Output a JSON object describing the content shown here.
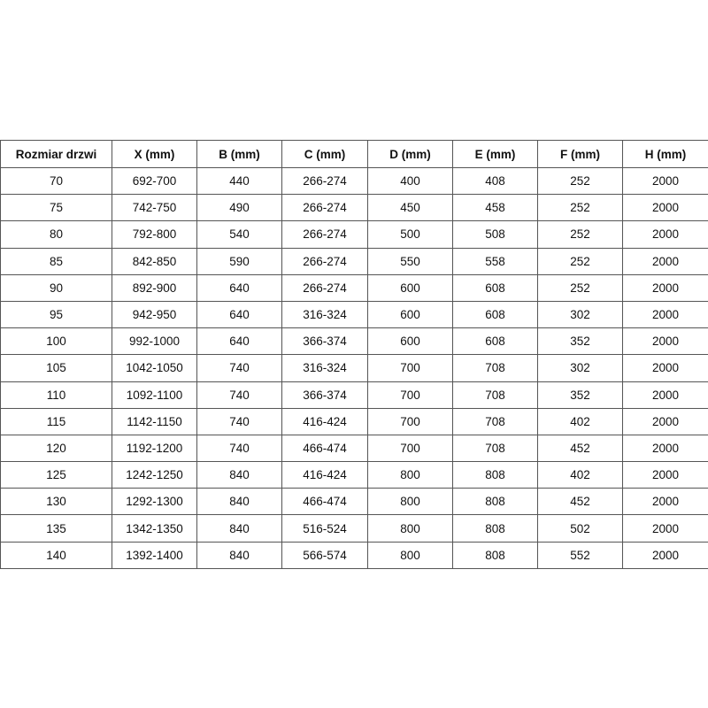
{
  "table": {
    "headers": [
      "Rozmiar drzwi",
      "X (mm)",
      "B (mm)",
      "C (mm)",
      "D (mm)",
      "E (mm)",
      "F (mm)",
      "H (mm)"
    ],
    "rows": [
      [
        "70",
        "692-700",
        "440",
        "266-274",
        "400",
        "408",
        "252",
        "2000"
      ],
      [
        "75",
        "742-750",
        "490",
        "266-274",
        "450",
        "458",
        "252",
        "2000"
      ],
      [
        "80",
        "792-800",
        "540",
        "266-274",
        "500",
        "508",
        "252",
        "2000"
      ],
      [
        "85",
        "842-850",
        "590",
        "266-274",
        "550",
        "558",
        "252",
        "2000"
      ],
      [
        "90",
        "892-900",
        "640",
        "266-274",
        "600",
        "608",
        "252",
        "2000"
      ],
      [
        "95",
        "942-950",
        "640",
        "316-324",
        "600",
        "608",
        "302",
        "2000"
      ],
      [
        "100",
        "992-1000",
        "640",
        "366-374",
        "600",
        "608",
        "352",
        "2000"
      ],
      [
        "105",
        "1042-1050",
        "740",
        "316-324",
        "700",
        "708",
        "302",
        "2000"
      ],
      [
        "110",
        "1092-1100",
        "740",
        "366-374",
        "700",
        "708",
        "352",
        "2000"
      ],
      [
        "115",
        "1142-1150",
        "740",
        "416-424",
        "700",
        "708",
        "402",
        "2000"
      ],
      [
        "120",
        "1192-1200",
        "740",
        "466-474",
        "700",
        "708",
        "452",
        "2000"
      ],
      [
        "125",
        "1242-1250",
        "840",
        "416-424",
        "800",
        "808",
        "402",
        "2000"
      ],
      [
        "130",
        "1292-1300",
        "840",
        "466-474",
        "800",
        "808",
        "452",
        "2000"
      ],
      [
        "135",
        "1342-1350",
        "840",
        "516-524",
        "800",
        "808",
        "502",
        "2000"
      ],
      [
        "140",
        "1392-1400",
        "840",
        "566-574",
        "800",
        "808",
        "552",
        "2000"
      ]
    ]
  }
}
